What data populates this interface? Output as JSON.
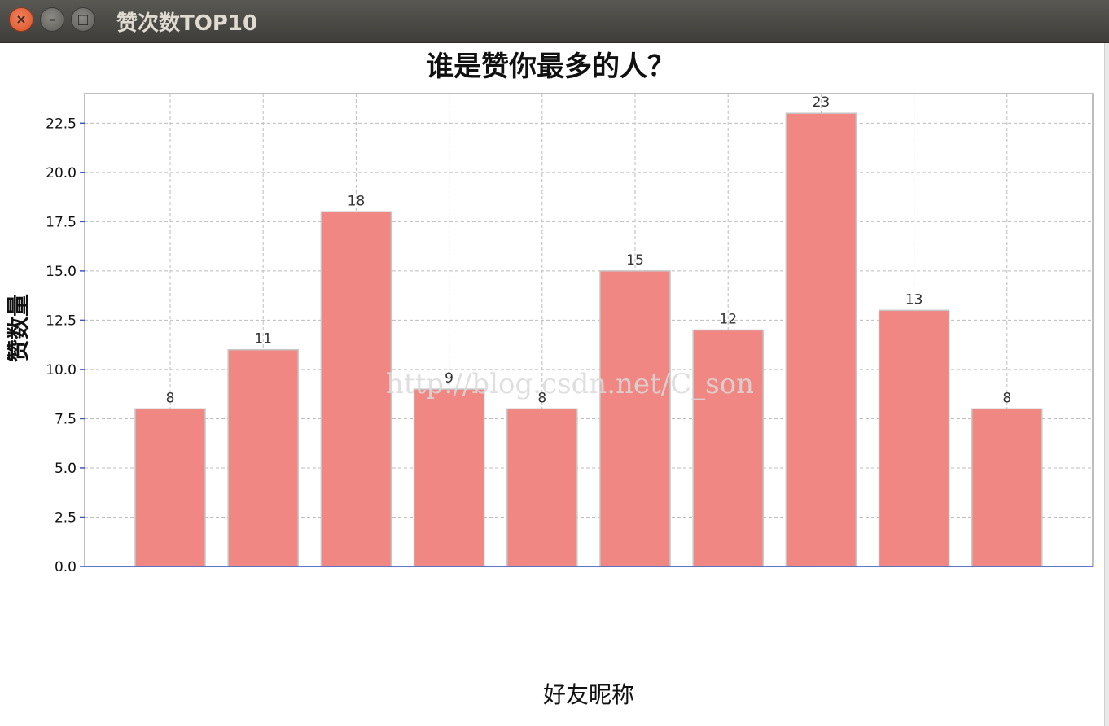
{
  "window": {
    "title": "赞次数TOP10",
    "close_glyph": "×",
    "minimize_glyph": "–",
    "maximize_glyph": "□"
  },
  "watermark": "http://blog.csdn.net/C_son",
  "chart_data": {
    "type": "bar",
    "title": "谁是赞你最多的人？",
    "xlabel": "好友昵称",
    "ylabel": "赞数量",
    "categories": [
      "",
      "",
      "",
      "",
      "",
      "",
      "",
      "",
      "",
      ""
    ],
    "values": [
      8,
      11,
      18,
      9,
      8,
      15,
      12,
      23,
      13,
      8
    ],
    "ylim": [
      0,
      24
    ],
    "yticks": [
      "0.0",
      "2.5",
      "5.0",
      "7.5",
      "10.0",
      "12.5",
      "15.0",
      "17.5",
      "20.0",
      "22.5"
    ],
    "grid": true,
    "bar_color": "#f08783",
    "bar_edge_color": "#c6c6c6",
    "data_labels": true
  }
}
